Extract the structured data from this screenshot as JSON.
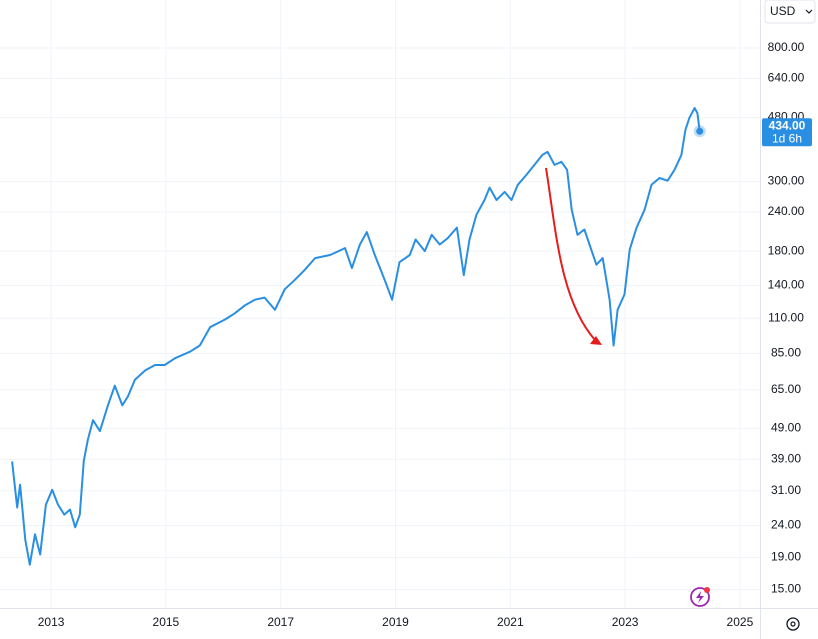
{
  "chart_data": {
    "type": "line",
    "log_scale": true,
    "grid": true,
    "color": "#2a8fe2",
    "currency": "USD",
    "last_label": "434.00",
    "countdown": "1d 6h",
    "xlim": [
      2012.11,
      2025.35
    ],
    "xticks": [
      2013,
      2015,
      2017,
      2019,
      2021,
      2023,
      2025
    ],
    "ylim": [
      13.1,
      1138
    ],
    "yticks": [
      {
        "value": 15,
        "label": "15.00"
      },
      {
        "value": 19,
        "label": "19.00"
      },
      {
        "value": 24,
        "label": "24.00"
      },
      {
        "value": 31,
        "label": "31.00"
      },
      {
        "value": 39,
        "label": "39.00"
      },
      {
        "value": 49,
        "label": "49.00"
      },
      {
        "value": 65,
        "label": "65.00"
      },
      {
        "value": 85,
        "label": "85.00"
      },
      {
        "value": 110,
        "label": "110.00"
      },
      {
        "value": 140,
        "label": "140.00"
      },
      {
        "value": 180,
        "label": "180.00"
      },
      {
        "value": 240,
        "label": "240.00"
      },
      {
        "value": 300,
        "label": "300.00"
      },
      {
        "value": 480,
        "label": "480.00"
      },
      {
        "value": 640,
        "label": "640.00"
      },
      {
        "value": 800,
        "label": "800.00"
      }
    ],
    "x": [
      2012.32,
      2012.41,
      2012.46,
      2012.55,
      2012.63,
      2012.72,
      2012.81,
      2012.91,
      2013.02,
      2013.12,
      2013.23,
      2013.33,
      2013.42,
      2013.5,
      2013.57,
      2013.64,
      2013.73,
      2013.85,
      2013.99,
      2014.11,
      2014.24,
      2014.34,
      2014.46,
      2014.64,
      2014.81,
      2014.98,
      2015.16,
      2015.42,
      2015.59,
      2015.77,
      2016.03,
      2016.2,
      2016.38,
      2016.55,
      2016.72,
      2016.9,
      2017.07,
      2017.25,
      2017.42,
      2017.6,
      2017.86,
      2018.12,
      2018.24,
      2018.38,
      2018.5,
      2018.64,
      2018.81,
      2018.94,
      2019.07,
      2019.25,
      2019.35,
      2019.51,
      2019.63,
      2019.77,
      2019.91,
      2020.07,
      2020.19,
      2020.29,
      2020.41,
      2020.55,
      2020.64,
      2020.76,
      2020.9,
      2021.02,
      2021.13,
      2021.28,
      2021.42,
      2021.56,
      2021.65,
      2021.77,
      2021.89,
      2021.99,
      2022.07,
      2022.17,
      2022.29,
      2022.38,
      2022.5,
      2022.61,
      2022.73,
      2022.8,
      2022.87,
      2022.99,
      2023.08,
      2023.2,
      2023.34,
      2023.46,
      2023.6,
      2023.74,
      2023.86,
      2023.98,
      2024.05,
      2024.12,
      2024.21,
      2024.26,
      2024.3
    ],
    "values": [
      38.4,
      27.4,
      32.4,
      21.6,
      18.0,
      22.5,
      19.4,
      28.0,
      31.2,
      28.0,
      26.0,
      27.0,
      23.7,
      26.0,
      38.6,
      45,
      52,
      48,
      58,
      67,
      58,
      62,
      70,
      75,
      78,
      78,
      82,
      86,
      90,
      103,
      109,
      114,
      121,
      126,
      128,
      117,
      136,
      146,
      157,
      171,
      175,
      184,
      159,
      189,
      207,
      175,
      146,
      126,
      166,
      175,
      196,
      180,
      203,
      189,
      198,
      214,
      151,
      196,
      235,
      262,
      287,
      262,
      278,
      262,
      293,
      315,
      339,
      365,
      373,
      339,
      347,
      327,
      244,
      203,
      211,
      189,
      163,
      171,
      126,
      90,
      117,
      131,
      182,
      214,
      244,
      293,
      308,
      302,
      327,
      365,
      438,
      479,
      515,
      496,
      434
    ]
  }
}
